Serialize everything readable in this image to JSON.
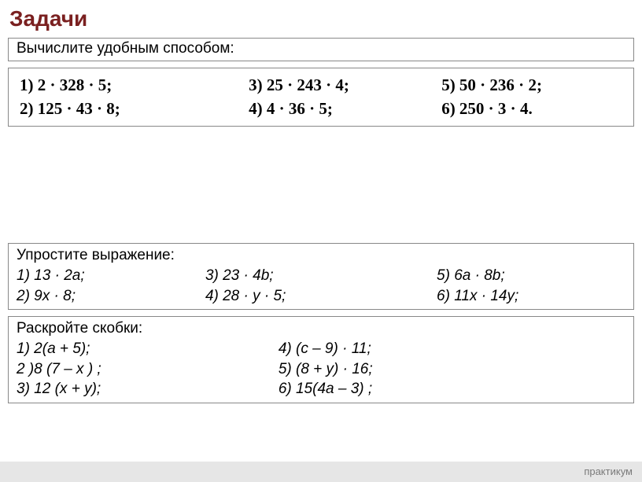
{
  "title": "Задачи",
  "calculate": {
    "label": "Вычислите удобным способом:",
    "rows": [
      {
        "c1": "1) 2 · 328 · 5;",
        "c2": "3) 25 · 243 · 4;",
        "c3": "5) 50 · 236 · 2;"
      },
      {
        "c1": "2) 125 · 43 · 8;",
        "c2": "4) 4 · 36 · 5;",
        "c3": "6) 250 · 3 · 4."
      }
    ]
  },
  "simplify": {
    "label": "Упростите выражение:",
    "rows": [
      {
        "c1": "1) 13 · 2а;",
        "c2": "3) 23 · 4b;",
        "c3": "5) 6a · 8b;"
      },
      {
        "c1": "2) 9x · 8;",
        "c2": "4) 28 · y · 5;",
        "c3": " 6) 11x · 14y;"
      }
    ]
  },
  "brackets": {
    "label": "Раскройте скобки:",
    "rows": [
      {
        "c1": "1) 2(a + 5);",
        "c2": " 4) (с – 9) · 11;"
      },
      {
        "c1": "2 )8 (7 – х ) ;",
        "c2": " 5) (8 + у) · 16;"
      },
      {
        "c1": "3) 12 (x + y);",
        "c2": "6) 15(4а – 3) ;"
      }
    ]
  },
  "footer": "практикум"
}
